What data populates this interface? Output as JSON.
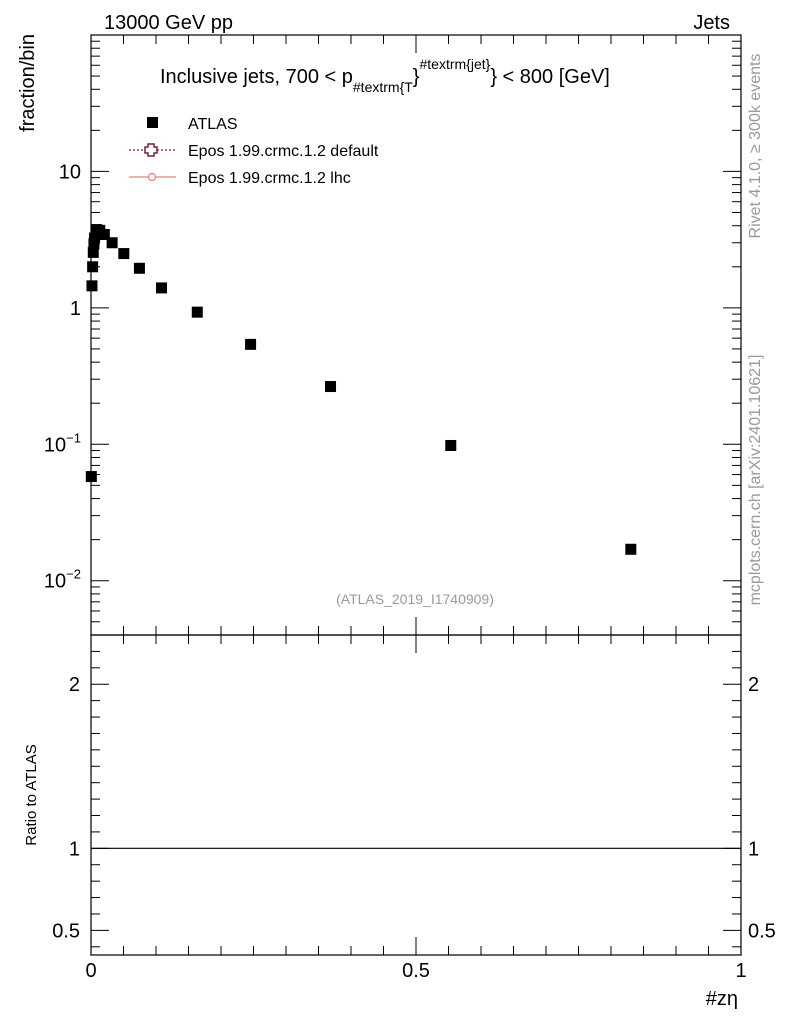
{
  "header": {
    "left": "13000 GeV pp",
    "right": "Jets"
  },
  "side_labels": {
    "rivet": "Rivet 4.1.0, ≥ 300k events",
    "mcplots": "mcplots.cern.ch [arXiv:2401.10621]"
  },
  "chart_data": {
    "type": "scatter",
    "title": {
      "prefix": "Inclusive jets, 700 < p",
      "sub": "#textrm{T",
      "mid": "}",
      "sup": "#textrm{jet}",
      "suffix": "} < 800 [GeV]"
    },
    "analysis_id": "(ATLAS_2019_I1740909)",
    "ylabel": "fraction/bin",
    "ratio_ylabel": "Ratio to ATLAS",
    "xlabel": "#zη",
    "xlim": [
      0,
      1
    ],
    "ylim": [
      0.004,
      100
    ],
    "yscale": "log",
    "ratio_ylim": [
      0.35,
      2.3
    ],
    "x_ticks": [
      {
        "value": 0,
        "label": "0"
      },
      {
        "value": 0.5,
        "label": "0.5"
      },
      {
        "value": 1,
        "label": "1"
      }
    ],
    "y_ticks": [
      {
        "value": 0.01,
        "base": "10",
        "exp": "−2"
      },
      {
        "value": 0.1,
        "base": "10",
        "exp": "−1"
      },
      {
        "value": 1,
        "base": "1",
        "exp": ""
      },
      {
        "value": 10,
        "base": "10",
        "exp": ""
      }
    ],
    "ratio_ticks": [
      {
        "value": 0.5,
        "label": "0.5"
      },
      {
        "value": 1,
        "label": "1"
      },
      {
        "value": 2,
        "label": "2"
      }
    ],
    "legend": [
      {
        "name": "ATLAS",
        "marker": "square",
        "color": "#000000"
      },
      {
        "name": "Epos 1.99.crmc.1.2 default",
        "marker": "open-cross",
        "color": "#7a1f3d"
      },
      {
        "name": "Epos 1.99.crmc.1.2 lhc",
        "marker": "circle-line",
        "color": "#e8807a"
      }
    ],
    "series": [
      {
        "name": "ATLAS",
        "x": [
          0.0005,
          0.0015,
          0.0025,
          0.0035,
          0.0045,
          0.0055,
          0.0085,
          0.0135,
          0.0205,
          0.0325,
          0.0505,
          0.0745,
          0.1085,
          0.1635,
          0.2455,
          0.3685,
          0.5535,
          0.8305
        ],
        "y": [
          0.058,
          1.45,
          2.0,
          2.55,
          2.95,
          3.25,
          3.75,
          3.7,
          3.45,
          3.0,
          2.5,
          1.95,
          1.4,
          0.93,
          0.54,
          0.265,
          0.098,
          0.017
        ]
      }
    ],
    "ratio_reference": 1
  }
}
